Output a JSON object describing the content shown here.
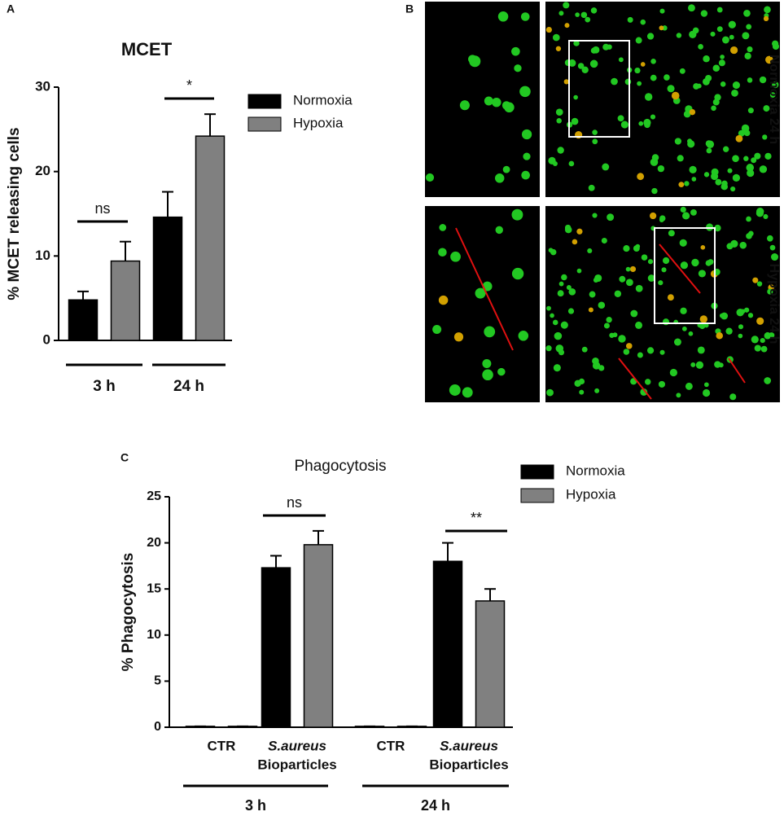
{
  "panel_labels": [
    "A",
    "B",
    "C"
  ],
  "images": {
    "labels": [
      "Normoxia 24 h",
      "Hypoxia 24 h"
    ]
  },
  "chart_data": [
    {
      "type": "bar",
      "title": "MCET",
      "y_label": "% MCET releasing cells",
      "categories": [
        [
          "3 h"
        ],
        [
          "24 h"
        ]
      ],
      "series": [
        {
          "name": "Normoxia",
          "color": "#000000",
          "values": [
            4.8,
            14.6
          ],
          "errors": [
            1.0,
            3.0
          ]
        },
        {
          "name": "Hypoxia",
          "color": "#808080",
          "values": [
            9.4,
            24.2
          ],
          "errors": [
            2.3,
            2.6
          ]
        }
      ],
      "ylim": [
        0,
        30
      ],
      "yticks": [
        0,
        10,
        20,
        30
      ],
      "annotations": [
        {
          "text": "ns",
          "category": 0
        },
        {
          "text": "*",
          "category": 1
        }
      ]
    },
    {
      "type": "bar",
      "title": "Phagocytosis",
      "y_label": "% Phagocytosis",
      "categories": [
        [
          "CTR"
        ],
        [
          "S.aureus",
          "Bioparticles"
        ],
        [
          "CTR"
        ],
        [
          "S.aureus",
          "Bioparticles"
        ]
      ],
      "groups": [
        "3 h",
        "24 h"
      ],
      "series": [
        {
          "name": "Normoxia",
          "color": "#000000",
          "values": [
            0.1,
            17.3,
            0.1,
            18.0
          ],
          "errors": [
            0,
            1.3,
            0,
            2.0
          ]
        },
        {
          "name": "Hypoxia",
          "color": "#808080",
          "values": [
            0.1,
            19.8,
            0.1,
            13.7
          ],
          "errors": [
            0,
            1.5,
            0,
            1.3
          ]
        }
      ],
      "ylim": [
        0,
        25
      ],
      "yticks": [
        0,
        5,
        10,
        15,
        20,
        25
      ],
      "annotations": [
        {
          "text": "ns",
          "category": 1
        },
        {
          "text": "**",
          "category": 3
        }
      ]
    }
  ]
}
